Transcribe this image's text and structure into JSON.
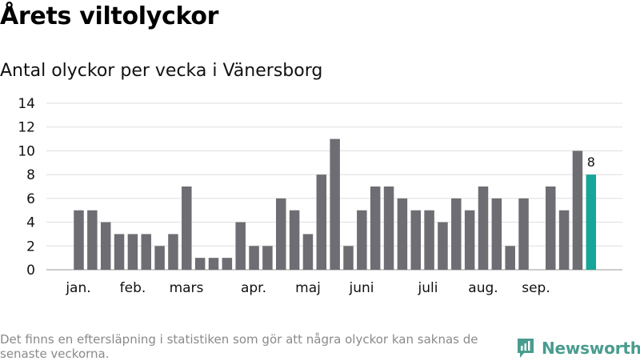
{
  "header": {
    "title": "Årets viltolyckor",
    "subtitle": "Antal olyckor per vecka i Vänersborg"
  },
  "chart_data": {
    "type": "bar",
    "values": [
      5,
      5,
      4,
      3,
      3,
      3,
      2,
      3,
      7,
      1,
      1,
      1,
      4,
      2,
      2,
      6,
      5,
      3,
      8,
      11,
      2,
      5,
      7,
      7,
      6,
      5,
      5,
      4,
      6,
      5,
      7,
      6,
      2,
      6,
      0,
      7,
      5,
      10,
      8
    ],
    "month_labels": [
      "jan.",
      "feb.",
      "mars",
      "apr.",
      "maj",
      "juni",
      "juli",
      "aug.",
      "sep."
    ],
    "yticks": [
      "0",
      "2",
      "4",
      "6",
      "8",
      "10",
      "12",
      "14"
    ],
    "ylim": [
      0,
      14
    ],
    "data_labels": [
      {
        "label": "8"
      }
    ],
    "grid": true,
    "bar_color": "#6e6d73",
    "highlight_color": "#17a598"
  },
  "footer": {
    "footnote": "Det finns en eftersläpning i statistiken som gör att några olyckor kan saknas de senaste veckorna.",
    "brand": "Newsworthy"
  },
  "colors": {
    "brand": "#4a9c8f",
    "grid": "#dddddd",
    "axis": "#999999"
  },
  "icons": {
    "logo": "bar-chart-logo-icon"
  }
}
